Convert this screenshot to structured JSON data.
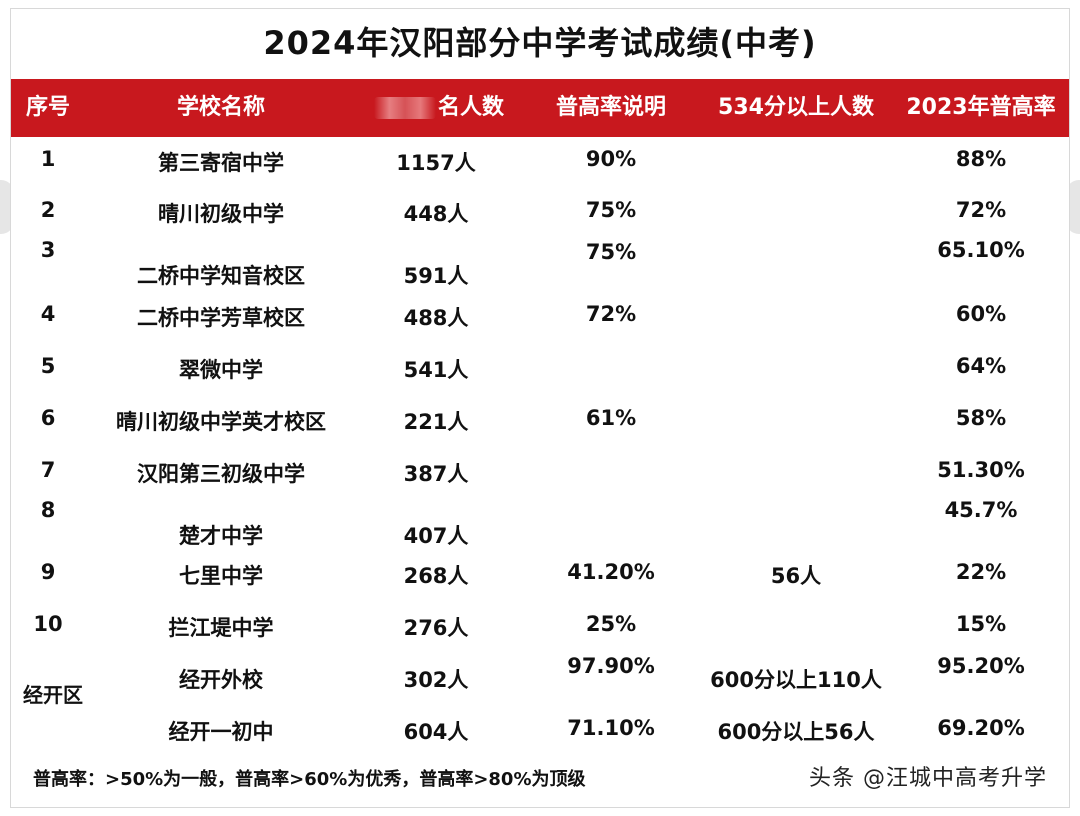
{
  "title": "2024年汉阳部分中学考试成绩(中考)",
  "headers": {
    "index": "序号",
    "school": "学校名称",
    "count_suffix": "名人数",
    "rate_note": "普高率说明",
    "above_534": "534分以上人数",
    "rate_2023": "2023年普高率"
  },
  "rows": [
    {
      "index": "1",
      "school": "第三寄宿中学",
      "count": "1157人",
      "rate": "90%",
      "above": "",
      "rate2023": "88%"
    },
    {
      "index": "2",
      "school": "晴川初级中学",
      "count": "448人",
      "rate": "75%",
      "above": "",
      "rate2023": "72%"
    },
    {
      "index": "3",
      "school": "二桥中学知音校区",
      "count": "591人",
      "rate": "75%",
      "above": "",
      "rate2023": "65.10%"
    },
    {
      "index": "4",
      "school": "二桥中学芳草校区",
      "count": "488人",
      "rate": "72%",
      "above": "",
      "rate2023": "60%"
    },
    {
      "index": "5",
      "school": "翠微中学",
      "count": "541人",
      "rate": "",
      "above": "",
      "rate2023": "64%"
    },
    {
      "index": "6",
      "school": "晴川初级中学英才校区",
      "count": "221人",
      "rate": "61%",
      "above": "",
      "rate2023": "58%"
    },
    {
      "index": "7",
      "school": "汉阳第三初级中学",
      "count": "387人",
      "rate": "",
      "above": "",
      "rate2023": "51.30%"
    },
    {
      "index": "8",
      "school": "楚才中学",
      "count": "407人",
      "rate": "",
      "above": "",
      "rate2023": "45.7%"
    },
    {
      "index": "9",
      "school": "七里中学",
      "count": "268人",
      "rate": "41.20%",
      "above": "56人",
      "rate2023": "22%"
    },
    {
      "index": "10",
      "school": "拦江堤中学",
      "count": "276人",
      "rate": "25%",
      "above": "",
      "rate2023": "15%"
    },
    {
      "index": "",
      "school": "经开外校",
      "count": "302人",
      "rate": "97.90%",
      "above": "600分以上110人",
      "rate2023": "95.20%"
    },
    {
      "index": "",
      "school": "经开一初中",
      "count": "604人",
      "rate": "71.10%",
      "above": "600分以上56人",
      "rate2023": "69.20%"
    }
  ],
  "zone_label": "经开区",
  "footer_note": "普高率：>50%为一般，普高率>60%为优秀，普高率>80%为顶级",
  "watermark": "头条 @汪城中高考升学"
}
